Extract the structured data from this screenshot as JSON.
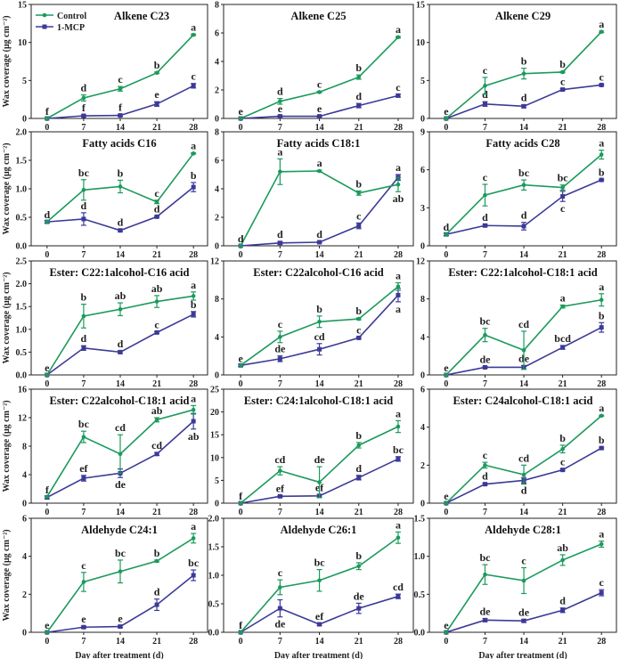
{
  "chart_data": {
    "type": "line",
    "x": [
      0,
      7,
      14,
      21,
      28
    ],
    "xticks": [
      "0",
      "7",
      "14",
      "21",
      "28"
    ],
    "xlabel": "Day after treatment (d)",
    "ylabel": "Wax coverage (μg cm⁻²)",
    "legend": {
      "placement": "top-left of first panel",
      "entries": [
        "Control",
        "1-MCP"
      ]
    },
    "colors": {
      "Control": "#1b9a5c",
      "1-MCP": "#3b3a98"
    },
    "panels": [
      {
        "title": "Alkene C23",
        "ylim": [
          0,
          15
        ],
        "yticks": [
          "0",
          "5",
          "10",
          "15"
        ],
        "series": [
          {
            "name": "Control",
            "values": [
              0,
              2.7,
              3.9,
              6.0,
              11.0
            ],
            "err": [
              0,
              0.4,
              0.3,
              0.1,
              0.1
            ],
            "letters": [
              "f",
              "d",
              "c",
              "b",
              "a"
            ],
            "below": []
          },
          {
            "name": "1-MCP",
            "values": [
              0,
              0.35,
              0.4,
              1.9,
              4.3
            ],
            "err": [
              0,
              0.1,
              0.1,
              0.3,
              0.3
            ],
            "letters": [
              "",
              "f",
              "f",
              "e",
              "c"
            ],
            "below": []
          }
        ]
      },
      {
        "title": "Alkene C25",
        "ylim": [
          0,
          8
        ],
        "yticks": [
          "0",
          "2",
          "4",
          "6",
          "8"
        ],
        "series": [
          {
            "name": "Control",
            "values": [
              0,
              1.2,
              1.85,
              2.9,
              5.7
            ],
            "err": [
              0,
              0.2,
              0.05,
              0.15,
              0.05
            ],
            "letters": [
              "e",
              "d",
              "c",
              "b",
              "a"
            ],
            "below": []
          },
          {
            "name": "1-MCP",
            "values": [
              0,
              0.15,
              0.15,
              0.9,
              1.6
            ],
            "err": [
              0,
              0.05,
              0.05,
              0.15,
              0.1
            ],
            "letters": [
              "",
              "e",
              "e",
              "d",
              "c"
            ],
            "below": []
          }
        ]
      },
      {
        "title": "Alkene C29",
        "ylim": [
          0,
          15
        ],
        "yticks": [
          "0",
          "5",
          "10",
          "15"
        ],
        "series": [
          {
            "name": "Control",
            "values": [
              0,
              4.3,
              5.9,
              6.1,
              11.4
            ],
            "err": [
              0,
              1.1,
              0.7,
              0.1,
              0.1
            ],
            "letters": [
              "e",
              "c",
              "b",
              "b",
              "a"
            ],
            "below": []
          },
          {
            "name": "1-MCP",
            "values": [
              0,
              1.9,
              1.6,
              3.8,
              4.4
            ],
            "err": [
              0,
              0.3,
              0.2,
              0.1,
              0.1
            ],
            "letters": [
              "",
              "d",
              "d",
              "c",
              "c"
            ],
            "below": []
          }
        ]
      },
      {
        "title": "Fatty acids C16",
        "ylim": [
          0,
          2.0
        ],
        "yticks": [
          "0.0",
          "0.5",
          "1.0",
          "1.5",
          "2.0"
        ],
        "series": [
          {
            "name": "Control",
            "values": [
              0.42,
              0.98,
              1.04,
              0.77,
              1.62
            ],
            "err": [
              0,
              0.18,
              0.11,
              0.03,
              0.01
            ],
            "letters": [
              "d",
              "bc",
              "b",
              "c",
              "a"
            ],
            "below": []
          },
          {
            "name": "1-MCP",
            "values": [
              0.42,
              0.47,
              0.27,
              0.51,
              1.03
            ],
            "err": [
              0.02,
              0.11,
              0.02,
              0.01,
              0.08
            ],
            "letters": [
              "",
              "d",
              "d",
              "d",
              "b"
            ],
            "below": []
          }
        ]
      },
      {
        "title": "Fatty acids C18:1",
        "ylim": [
          0,
          8
        ],
        "yticks": [
          "0",
          "2",
          "4",
          "6",
          "8"
        ],
        "series": [
          {
            "name": "Control",
            "values": [
              0,
              5.2,
              5.25,
              3.7,
              4.3
            ],
            "err": [
              0,
              0.9,
              0.05,
              0.15,
              0.5
            ],
            "letters": [
              "d",
              "a",
              "a",
              "b",
              "ab"
            ],
            "below": [
              4
            ]
          },
          {
            "name": "1-MCP",
            "values": [
              0,
              0.2,
              0.25,
              1.4,
              4.8
            ],
            "err": [
              0,
              0.1,
              0.05,
              0.2,
              0.2
            ],
            "letters": [
              "",
              "d",
              "d",
              "c",
              "a"
            ],
            "below": []
          }
        ]
      },
      {
        "title": "Fatty acids C28",
        "ylim": [
          0,
          9
        ],
        "yticks": [
          "0",
          "3",
          "6",
          "9"
        ],
        "series": [
          {
            "name": "Control",
            "values": [
              0.9,
              4.0,
              4.8,
              4.6,
              7.2
            ],
            "err": [
              0,
              0.85,
              0.4,
              0.2,
              0.35
            ],
            "letters": [
              "d",
              "c",
              "bc",
              "bc",
              "a"
            ],
            "below": []
          },
          {
            "name": "1-MCP",
            "values": [
              0.9,
              1.6,
              1.55,
              3.9,
              5.2
            ],
            "err": [
              0.1,
              0.1,
              0.3,
              0.4,
              0.05
            ],
            "letters": [
              "",
              "d",
              "d",
              "c",
              "b"
            ],
            "below": [
              3
            ]
          }
        ]
      },
      {
        "title": "Ester: C22:1alcohol-C16 acid",
        "ylim": [
          0,
          2.5
        ],
        "yticks": [
          "0.0",
          "0.5",
          "1.0",
          "1.5",
          "2.0",
          "2.5"
        ],
        "series": [
          {
            "name": "Control",
            "values": [
              0,
              1.29,
              1.44,
              1.61,
              1.73
            ],
            "err": [
              0,
              0.26,
              0.14,
              0.13,
              0.09
            ],
            "letters": [
              "e",
              "b",
              "ab",
              "ab",
              "a"
            ],
            "below": []
          },
          {
            "name": "1-MCP",
            "values": [
              0,
              0.59,
              0.5,
              0.93,
              1.33
            ],
            "err": [
              0,
              0.05,
              0.03,
              0.02,
              0.06
            ],
            "letters": [
              "",
              "d",
              "d",
              "c",
              "b"
            ],
            "below": []
          }
        ]
      },
      {
        "title": "Ester: C22alcohol-C16 acid",
        "ylim": [
          0,
          12
        ],
        "yticks": [
          "0",
          "4",
          "8",
          "12"
        ],
        "series": [
          {
            "name": "Control",
            "values": [
              1.0,
              4.0,
              5.6,
              5.9,
              9.3
            ],
            "err": [
              0,
              0.6,
              0.6,
              0.1,
              0.4
            ],
            "letters": [
              "e",
              "c",
              "b",
              "b",
              "a"
            ],
            "below": []
          },
          {
            "name": "1-MCP",
            "values": [
              1.0,
              1.7,
              2.7,
              3.9,
              8.4
            ],
            "err": [
              0.1,
              0.3,
              0.6,
              0.1,
              0.7
            ],
            "letters": [
              "",
              "de",
              "cd",
              "c",
              "a"
            ],
            "below": [
              4
            ]
          }
        ]
      },
      {
        "title": "Ester: C22:1alcohol-C18:1 acid",
        "ylim": [
          0,
          12
        ],
        "yticks": [
          "0",
          "4",
          "8",
          "12"
        ],
        "series": [
          {
            "name": "Control",
            "values": [
              0,
              4.2,
              2.6,
              7.2,
              7.9
            ],
            "err": [
              0,
              0.7,
              2.0,
              0.15,
              0.65
            ],
            "letters": [
              "e",
              "bc",
              "cd",
              "a",
              "a"
            ],
            "below": []
          },
          {
            "name": "1-MCP",
            "values": [
              0,
              0.8,
              0.8,
              2.9,
              5.0
            ],
            "err": [
              0,
              0.1,
              0.2,
              0.2,
              0.5
            ],
            "letters": [
              "",
              "de",
              "de",
              "bcd",
              "b"
            ],
            "below": []
          }
        ]
      },
      {
        "title": "Ester: C22alcohol-C18:1 acid",
        "ylim": [
          0,
          16
        ],
        "yticks": [
          "0",
          "4",
          "8",
          "12",
          "16"
        ],
        "series": [
          {
            "name": "Control",
            "values": [
              0.9,
              9.3,
              6.9,
              11.7,
              13.1
            ],
            "err": [
              0,
              0.8,
              2.7,
              0.3,
              0.6
            ],
            "letters": [
              "f",
              "bc",
              "cd",
              "ab",
              "a"
            ],
            "below": []
          },
          {
            "name": "1-MCP",
            "values": [
              0.8,
              3.5,
              4.2,
              6.9,
              11.5
            ],
            "err": [
              0.2,
              0.4,
              0.6,
              0.2,
              1.1
            ],
            "letters": [
              "",
              "ef",
              "de",
              "cd",
              "ab"
            ],
            "below": [
              2,
              4
            ]
          }
        ]
      },
      {
        "title": "Ester: C24:1alcohol-C18:1 acid",
        "ylim": [
          0,
          25
        ],
        "yticks": [
          "0",
          "5",
          "10",
          "15",
          "20",
          "25"
        ],
        "series": [
          {
            "name": "Control",
            "values": [
              0,
              7.1,
              4.6,
              12.7,
              16.8
            ],
            "err": [
              0,
              0.9,
              3.4,
              0.6,
              1.3
            ],
            "letters": [
              "f",
              "cd",
              "de",
              "b",
              "a"
            ],
            "below": []
          },
          {
            "name": "1-MCP",
            "values": [
              0,
              1.5,
              1.6,
              5.6,
              9.7
            ],
            "err": [
              0,
              0.2,
              0.3,
              0.5,
              0.5
            ],
            "letters": [
              "",
              "ef",
              "ef",
              "d",
              "bc"
            ],
            "below": []
          }
        ]
      },
      {
        "title": "Ester: C24alcohol-C18:1 acid",
        "ylim": [
          0,
          6
        ],
        "yticks": [
          "0",
          "2",
          "4",
          "6"
        ],
        "series": [
          {
            "name": "Control",
            "values": [
              0,
              2.0,
              1.5,
              2.85,
              4.6
            ],
            "err": [
              0,
              0.15,
              0.5,
              0.2,
              0.03
            ],
            "letters": [
              "e",
              "c",
              "cd",
              "b",
              "a"
            ],
            "below": []
          },
          {
            "name": "1-MCP",
            "values": [
              0,
              1.0,
              1.2,
              1.75,
              2.9
            ],
            "err": [
              0,
              0.05,
              0.15,
              0.05,
              0.05
            ],
            "letters": [
              "",
              "d",
              "d",
              "c",
              "b"
            ],
            "below": [
              2
            ]
          }
        ]
      },
      {
        "title": "Aldehyde C24:1",
        "ylim": [
          0,
          6
        ],
        "yticks": [
          "0",
          "2",
          "4",
          "6"
        ],
        "series": [
          {
            "name": "Control",
            "values": [
              0,
              2.65,
              3.2,
              3.75,
              4.95
            ],
            "err": [
              0,
              0.5,
              0.6,
              0.05,
              0.25
            ],
            "letters": [
              "e",
              "c",
              "bc",
              "b",
              "a"
            ],
            "below": []
          },
          {
            "name": "1-MCP",
            "values": [
              0,
              0.27,
              0.3,
              1.45,
              3.0
            ],
            "err": [
              0,
              0.05,
              0.05,
              0.3,
              0.28
            ],
            "letters": [
              "",
              "e",
              "e",
              "d",
              "bc"
            ],
            "below": []
          }
        ]
      },
      {
        "title": "Aldehyde C26:1",
        "ylim": [
          0,
          2.0
        ],
        "yticks": [
          "0.0",
          "0.5",
          "1.0",
          "1.5",
          "2.0"
        ],
        "series": [
          {
            "name": "Control",
            "values": [
              0,
              0.79,
              0.91,
              1.16,
              1.66
            ],
            "err": [
              0,
              0.13,
              0.19,
              0.06,
              0.1
            ],
            "letters": [
              "f",
              "c",
              "bc",
              "b",
              "a"
            ],
            "below": []
          },
          {
            "name": "1-MCP",
            "values": [
              0,
              0.42,
              0.14,
              0.42,
              0.63
            ],
            "err": [
              0,
              0.15,
              0.02,
              0.09,
              0.04
            ],
            "letters": [
              "",
              "de",
              "ef",
              "de",
              "cd"
            ],
            "below": [
              1
            ]
          }
        ]
      },
      {
        "title": "Aldehyde C28:1",
        "ylim": [
          0,
          1.5
        ],
        "yticks": [
          "0.0",
          "0.5",
          "1.0",
          "1.5"
        ],
        "series": [
          {
            "name": "Control",
            "values": [
              0,
              0.76,
              0.68,
              0.95,
              1.16
            ],
            "err": [
              0,
              0.13,
              0.17,
              0.07,
              0.04
            ],
            "letters": [
              "e",
              "bc",
              "c",
              "ab",
              "a"
            ],
            "below": []
          },
          {
            "name": "1-MCP",
            "values": [
              0,
              0.16,
              0.15,
              0.29,
              0.52
            ],
            "err": [
              0,
              0.02,
              0.02,
              0.03,
              0.04
            ],
            "letters": [
              "",
              "de",
              "de",
              "d",
              "c"
            ],
            "below": []
          }
        ]
      }
    ]
  }
}
